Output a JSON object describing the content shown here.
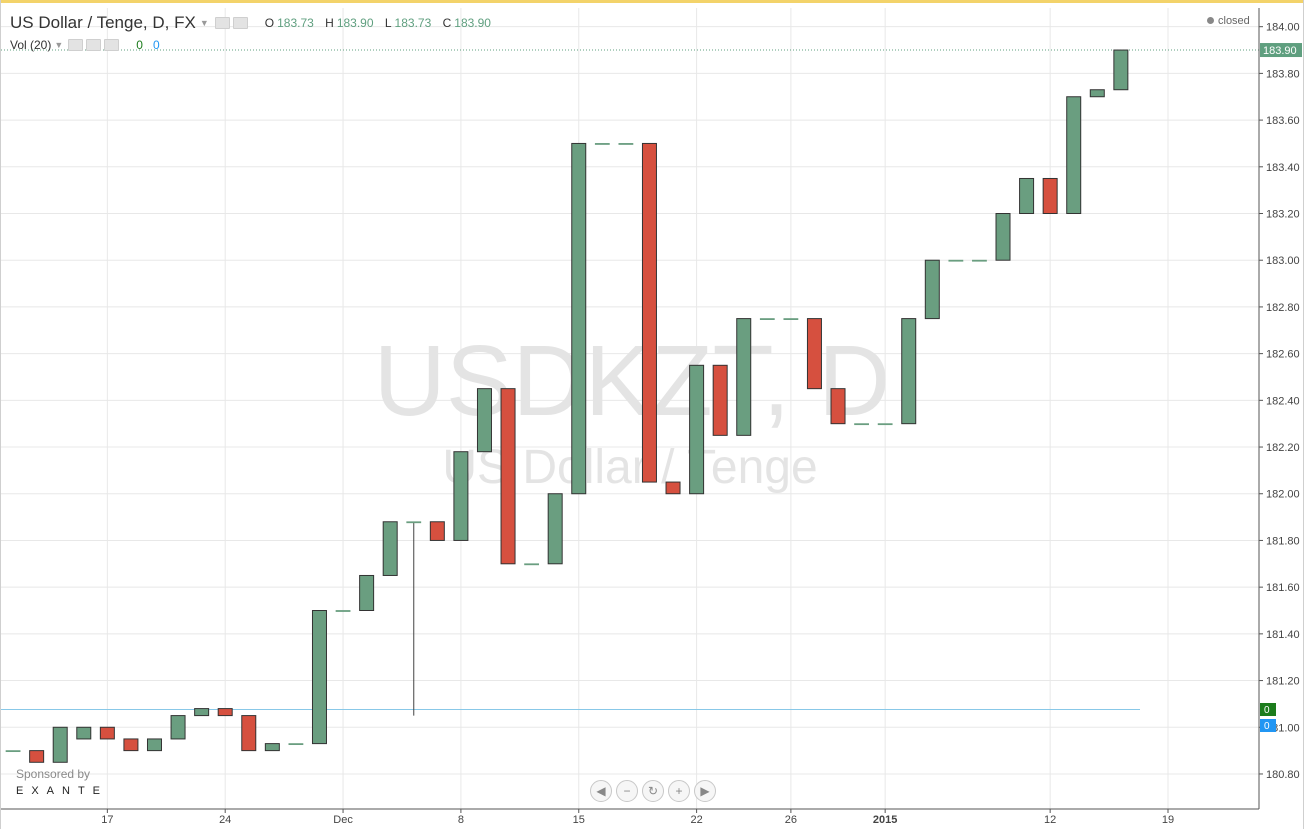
{
  "header": {
    "symbol_title": "US Dollar / Tenge, D, FX",
    "ohlc": [
      {
        "key": "O",
        "value": "183.73"
      },
      {
        "key": "H",
        "value": "183.90"
      },
      {
        "key": "L",
        "value": "183.73"
      },
      {
        "key": "C",
        "value": "183.90"
      }
    ],
    "status": "closed"
  },
  "volume_legend": {
    "label": "Vol (20)",
    "value_a": "0",
    "value_b": "0"
  },
  "sponsor": {
    "line1": "Sponsored by",
    "line2": "EXANTE"
  },
  "navigation": {
    "scroll_left": "◀",
    "zoom_out": "−",
    "reset": "↻",
    "zoom_in": "+",
    "scroll_right": "▶"
  },
  "colors": {
    "up": "#6a9e80",
    "down": "#d6503f",
    "grid": "#e8e8e8",
    "price_line": "#5f9f7f",
    "volume_line": "#88c8e8"
  },
  "chart_data": {
    "type": "candlestick",
    "watermark": "USDKZT, D",
    "watermark_sub": "US Dollar / Tenge",
    "y_ticks": [
      "180.80",
      "181.00",
      "181.20",
      "181.40",
      "181.60",
      "181.80",
      "182.00",
      "182.20",
      "182.40",
      "182.60",
      "182.80",
      "183.00",
      "183.20",
      "183.40",
      "183.60",
      "183.80",
      "184.00"
    ],
    "ylim": [
      180.65,
      184.08
    ],
    "x_ticks": [
      "17",
      "24",
      "Dec",
      "8",
      "15",
      "22",
      "26",
      "2015",
      "12",
      "19"
    ],
    "last_price": "183.90",
    "volume_markers": [
      "0",
      "0"
    ],
    "candles": [
      {
        "o": 181.0,
        "h": 181.0,
        "l": 180.95,
        "c": 180.95
      },
      {
        "o": 180.9,
        "h": 180.9,
        "l": 180.9,
        "c": 180.9
      },
      {
        "o": 180.9,
        "h": 180.9,
        "l": 180.85,
        "c": 180.85
      },
      {
        "o": 180.85,
        "h": 181.0,
        "l": 180.85,
        "c": 181.0
      },
      {
        "o": 180.95,
        "h": 181.0,
        "l": 180.95,
        "c": 181.0
      },
      {
        "o": 181.0,
        "h": 181.0,
        "l": 180.95,
        "c": 180.95
      },
      {
        "o": 180.95,
        "h": 180.95,
        "l": 180.9,
        "c": 180.9
      },
      {
        "o": 180.9,
        "h": 180.95,
        "l": 180.9,
        "c": 180.95
      },
      {
        "o": 180.95,
        "h": 181.05,
        "l": 180.95,
        "c": 181.05
      },
      {
        "o": 181.05,
        "h": 181.08,
        "l": 181.05,
        "c": 181.08
      },
      {
        "o": 181.08,
        "h": 181.08,
        "l": 181.05,
        "c": 181.05
      },
      {
        "o": 181.05,
        "h": 181.05,
        "l": 180.9,
        "c": 180.9
      },
      {
        "o": 180.9,
        "h": 180.93,
        "l": 180.9,
        "c": 180.93
      },
      {
        "o": 180.93,
        "h": 180.93,
        "l": 180.93,
        "c": 180.93
      },
      {
        "o": 180.93,
        "h": 181.5,
        "l": 180.93,
        "c": 181.5
      },
      {
        "o": 181.5,
        "h": 181.5,
        "l": 181.5,
        "c": 181.5
      },
      {
        "o": 181.5,
        "h": 181.65,
        "l": 181.5,
        "c": 181.65
      },
      {
        "o": 181.65,
        "h": 181.88,
        "l": 181.65,
        "c": 181.88
      },
      {
        "o": 181.88,
        "h": 181.88,
        "l": 181.05,
        "c": 181.88
      },
      {
        "o": 181.88,
        "h": 181.88,
        "l": 181.8,
        "c": 181.8
      },
      {
        "o": 181.8,
        "h": 182.18,
        "l": 181.8,
        "c": 182.18
      },
      {
        "o": 182.18,
        "h": 182.45,
        "l": 182.18,
        "c": 182.45
      },
      {
        "o": 182.45,
        "h": 182.45,
        "l": 181.7,
        "c": 181.7
      },
      {
        "o": 181.7,
        "h": 181.7,
        "l": 181.7,
        "c": 181.7
      },
      {
        "o": 181.7,
        "h": 182.0,
        "l": 181.7,
        "c": 182.0
      },
      {
        "o": 182.0,
        "h": 183.5,
        "l": 182.0,
        "c": 183.5
      },
      {
        "o": 183.5,
        "h": 183.5,
        "l": 183.5,
        "c": 183.5
      },
      {
        "o": 183.5,
        "h": 183.5,
        "l": 183.5,
        "c": 183.5
      },
      {
        "o": 183.5,
        "h": 183.5,
        "l": 182.05,
        "c": 182.05
      },
      {
        "o": 182.05,
        "h": 182.05,
        "l": 182.0,
        "c": 182.0
      },
      {
        "o": 182.0,
        "h": 182.55,
        "l": 182.0,
        "c": 182.55
      },
      {
        "o": 182.55,
        "h": 182.55,
        "l": 182.25,
        "c": 182.25
      },
      {
        "o": 182.25,
        "h": 182.75,
        "l": 182.25,
        "c": 182.75
      },
      {
        "o": 182.75,
        "h": 182.75,
        "l": 182.75,
        "c": 182.75
      },
      {
        "o": 182.75,
        "h": 182.75,
        "l": 182.75,
        "c": 182.75
      },
      {
        "o": 182.75,
        "h": 182.75,
        "l": 182.45,
        "c": 182.45
      },
      {
        "o": 182.45,
        "h": 182.45,
        "l": 182.3,
        "c": 182.3
      },
      {
        "o": 182.3,
        "h": 182.3,
        "l": 182.3,
        "c": 182.3
      },
      {
        "o": 182.3,
        "h": 182.3,
        "l": 182.3,
        "c": 182.3
      },
      {
        "o": 182.3,
        "h": 182.75,
        "l": 182.3,
        "c": 182.75
      },
      {
        "o": 182.75,
        "h": 183.0,
        "l": 182.75,
        "c": 183.0
      },
      {
        "o": 183.0,
        "h": 183.0,
        "l": 183.0,
        "c": 183.0
      },
      {
        "o": 183.0,
        "h": 183.0,
        "l": 183.0,
        "c": 183.0
      },
      {
        "o": 183.0,
        "h": 183.2,
        "l": 183.0,
        "c": 183.2
      },
      {
        "o": 183.2,
        "h": 183.35,
        "l": 183.2,
        "c": 183.35
      },
      {
        "o": 183.35,
        "h": 183.35,
        "l": 183.2,
        "c": 183.2
      },
      {
        "o": 183.2,
        "h": 183.7,
        "l": 183.2,
        "c": 183.7
      },
      {
        "o": 183.7,
        "h": 183.73,
        "l": 183.7,
        "c": 183.73
      },
      {
        "o": 183.73,
        "h": 183.9,
        "l": 183.73,
        "c": 183.9
      }
    ]
  }
}
